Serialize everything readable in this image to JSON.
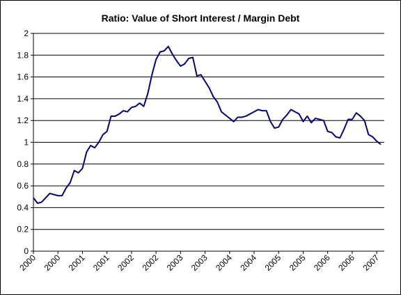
{
  "chart_data": {
    "type": "line",
    "title": "Ratio: Value of Short Interest / Margin Debt",
    "categories": [
      "2000",
      null,
      null,
      null,
      null,
      null,
      "2000",
      null,
      null,
      null,
      null,
      null,
      "2001",
      null,
      null,
      null,
      null,
      null,
      "2001",
      null,
      null,
      null,
      null,
      null,
      "2002",
      null,
      null,
      null,
      null,
      null,
      "2002",
      null,
      null,
      null,
      null,
      null,
      "2003",
      null,
      null,
      null,
      null,
      null,
      "2003",
      null,
      null,
      null,
      null,
      null,
      "2004",
      null,
      null,
      null,
      null,
      null,
      "2004",
      null,
      null,
      null,
      null,
      null,
      "2005",
      null,
      null,
      null,
      null,
      null,
      "2005",
      null,
      null,
      null,
      null,
      null,
      "2006",
      null,
      null,
      null,
      null,
      null,
      "2006",
      null,
      null,
      null,
      null,
      null,
      "2007",
      null
    ],
    "series": [
      {
        "color": "#000080",
        "values": [
          0.49,
          0.44,
          0.45,
          0.49,
          0.53,
          0.52,
          0.51,
          0.51,
          0.58,
          0.63,
          0.74,
          0.72,
          0.76,
          0.91,
          0.97,
          0.95,
          1.0,
          1.07,
          1.1,
          1.24,
          1.24,
          1.26,
          1.29,
          1.28,
          1.32,
          1.33,
          1.36,
          1.33,
          1.45,
          1.62,
          1.76,
          1.83,
          1.84,
          1.88,
          1.81,
          1.75,
          1.7,
          1.72,
          1.77,
          1.78,
          1.61,
          1.62,
          1.56,
          1.5,
          1.42,
          1.37,
          1.28,
          1.25,
          1.22,
          1.19,
          1.23,
          1.23,
          1.24,
          1.26,
          1.28,
          1.3,
          1.29,
          1.29,
          1.19,
          1.13,
          1.14,
          1.21,
          1.25,
          1.3,
          1.28,
          1.26,
          1.19,
          1.24,
          1.18,
          1.22,
          1.21,
          1.2,
          1.1,
          1.09,
          1.05,
          1.04,
          1.12,
          1.21,
          1.21,
          1.27,
          1.24,
          1.2,
          1.07,
          1.05,
          1.01,
          0.98
        ]
      }
    ],
    "ylim": [
      0,
      2
    ],
    "yticks": [
      0,
      0.2,
      0.4,
      0.6,
      0.8,
      1,
      1.2,
      1.4,
      1.6,
      1.8,
      2
    ],
    "grid": true
  }
}
